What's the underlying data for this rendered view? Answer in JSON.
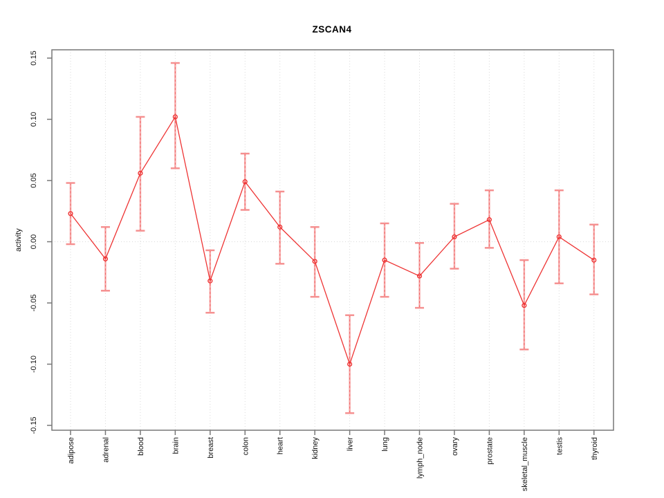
{
  "chart_data": {
    "type": "line",
    "title": "ZSCAN4",
    "ylabel": "activity",
    "xlabel": "",
    "legend": "none",
    "marker": "open-circle",
    "error_bars": true,
    "ylim": [
      -0.15,
      0.15
    ],
    "yticks": [
      0.15,
      0.1,
      0.05,
      0,
      -0.05,
      -0.1,
      -0.15
    ],
    "ytick_labels": [
      "0.15",
      "0.10",
      "0.05",
      "0.00",
      "-0.05",
      "-0.10",
      "-0.15"
    ],
    "grid": {
      "vertical": "dotted line at each category",
      "horizontal": "dotted line at zero only"
    },
    "categories": [
      "adipose",
      "adrenal",
      "blood",
      "brain",
      "breast",
      "colon",
      "heart",
      "kidney",
      "liver",
      "lung",
      "lymph_node",
      "ovary",
      "prostate",
      "skeletal_muscle",
      "testis",
      "thyroid"
    ],
    "series": [
      {
        "name": "activity",
        "values": [
          0.023,
          -0.014,
          0.056,
          0.102,
          -0.032,
          0.049,
          0.012,
          -0.016,
          -0.1,
          -0.015,
          -0.028,
          0.004,
          0.018,
          -0.052,
          0.004,
          -0.015
        ],
        "lower": [
          -0.002,
          -0.04,
          0.009,
          0.06,
          -0.058,
          0.026,
          -0.018,
          -0.045,
          -0.14,
          -0.045,
          -0.054,
          -0.022,
          -0.005,
          -0.088,
          -0.034,
          -0.043
        ],
        "upper": [
          0.048,
          0.012,
          0.102,
          0.146,
          -0.007,
          0.072,
          0.041,
          0.012,
          -0.06,
          0.015,
          -0.001,
          0.031,
          0.042,
          -0.015,
          0.042,
          0.014
        ]
      }
    ],
    "colors": {
      "line": "#ee3333",
      "error_bar": "#f59090",
      "grid": "#d9d9d9",
      "box": "#777777",
      "text": "#111111",
      "background": "#ffffff"
    }
  }
}
